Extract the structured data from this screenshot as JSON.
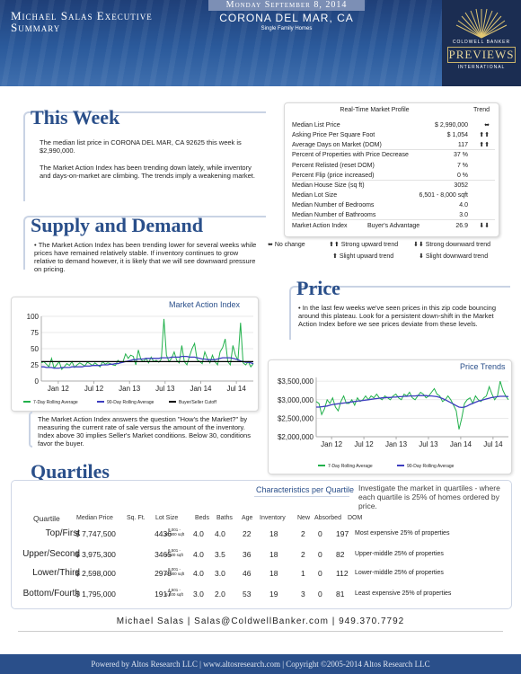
{
  "header": {
    "title_line1": "Michael Salas Executive",
    "title_line2": "Summary",
    "date": "Monday September 8, 2014",
    "city": "CORONA DEL MAR, CA",
    "property_type": "Single Family Homes",
    "logo_brand": "COLDWELL BANKER",
    "logo_name": "PREVIEWS",
    "logo_sub": "INTERNATIONAL"
  },
  "this_week": {
    "heading": "This Week",
    "para1": "The median list price in CORONA DEL MAR, CA 92625 this week is $2,990,000.",
    "para2": "The Market Action Index has been trending down lately, while inventory and days-on-market are climbing. The trends imply a weakening market."
  },
  "market_profile": {
    "title": "Real-Time Market Profile",
    "trend_header": "Trend",
    "rows": [
      {
        "label": "Median List Price",
        "value": "$ 2,990,000",
        "trend": "⬌"
      },
      {
        "label": "Asking Price Per Square Foot",
        "value": "$ 1,054",
        "trend": "⬆⬆"
      },
      {
        "label": "Average Days on Market (DOM)",
        "value": "117",
        "trend": "⬆⬆"
      },
      {
        "label": "Percent of Properties with Price Decrease",
        "value": "37 %",
        "trend": ""
      },
      {
        "label": "Percent Relisted (reset DOM)",
        "value": "7 %",
        "trend": ""
      },
      {
        "label": "Percent Flip (price increased)",
        "value": "0 %",
        "trend": ""
      },
      {
        "label": "Median House Size (sq ft)",
        "value": "3052",
        "trend": ""
      },
      {
        "label": "Median Lot Size",
        "value": "6,501 - 8,000 sqft",
        "trend": ""
      },
      {
        "label": "Median Number of Bedrooms",
        "value": "4.0",
        "trend": ""
      },
      {
        "label": "Median Number of Bathrooms",
        "value": "3.0",
        "trend": ""
      }
    ],
    "mai_label": "Market Action Index",
    "mai_status": "Buyer's Advantage",
    "mai_value": "26.9",
    "mai_trend": "⬇⬇"
  },
  "trend_legend": {
    "no_change": "No change",
    "strong_up": "Strong upward trend",
    "strong_down": "Strong downward trend",
    "slight_up": "Slight upward trend",
    "slight_down": "Slight downward trend",
    "no_change_icon": "⬌",
    "strong_up_icon": "⬆⬆",
    "strong_down_icon": "⬇⬇",
    "slight_up_icon": "⬆",
    "slight_down_icon": "⬇"
  },
  "supply_demand": {
    "heading": "Supply and Demand",
    "para": "The Market Action Index has been trending lower for several weeks while prices have remained relatively stable. If inventory continues to grow relative to demand however, it is likely that we will see downward pressure on pricing.",
    "chart_note": "The Market Action Index answers the question \"How's the Market?\" by measuring the current rate of sale versus the amount of the inventory.  Index above 30 implies Seller's Market conditions. Below 30, conditions favor the buyer."
  },
  "price": {
    "heading": "Price",
    "para": "In the last few weeks we've seen prices in this zip code bouncing around this plateau. Look for a persistent down-shift in the Market Action Index before we see prices deviate from these levels."
  },
  "quartiles": {
    "heading": "Quartiles",
    "characteristics_title": "Characteristics per Quartile",
    "intro": "Investigate the market in quartiles - where each quartile is 25% of homes ordered by price.",
    "columns": [
      "Quartile",
      "Median Price",
      "Sq. Ft.",
      "Lot Size",
      "Beds",
      "Baths",
      "Age",
      "Inventory",
      "New",
      "Absorbed",
      "DOM"
    ],
    "rows": [
      {
        "quartile": "Top/First",
        "price": "$ 7,747,500",
        "sqft": "4436",
        "lot1": "8,001 -",
        "lot2": "10,000 sqft",
        "beds": "4.0",
        "baths": "4.0",
        "age": "22",
        "inventory": "18",
        "new": "2",
        "absorbed": "0",
        "dom": "197",
        "desc": "Most expensive 25% of properties"
      },
      {
        "quartile": "Upper/Second",
        "price": "$ 3,975,300",
        "sqft": "3465",
        "lot1": "6,501 -",
        "lot2": "8,000 sqft",
        "beds": "4.0",
        "baths": "3.5",
        "age": "36",
        "inventory": "18",
        "new": "2",
        "absorbed": "0",
        "dom": "82",
        "desc": "Upper-middle 25% of properties"
      },
      {
        "quartile": "Lower/Third",
        "price": "$ 2,598,000",
        "sqft": "2978",
        "lot1": "8,001 -",
        "lot2": "10,000 sqft",
        "beds": "4.0",
        "baths": "3.0",
        "age": "46",
        "inventory": "18",
        "new": "1",
        "absorbed": "0",
        "dom": "112",
        "desc": "Lower-middle 25% of properties"
      },
      {
        "quartile": "Bottom/Fourth",
        "price": "$ 1,795,000",
        "sqft": "1917",
        "lot1": "4,501 -",
        "lot2": "6,500 sqft",
        "beds": "3.0",
        "baths": "2.0",
        "age": "53",
        "inventory": "19",
        "new": "3",
        "absorbed": "0",
        "dom": "81",
        "desc": "Least expensive 25% of properties"
      }
    ]
  },
  "footer": {
    "contact": "Michael Salas | Salas@ColdwellBanker.com | 949.370.7792",
    "copyright": "Powered by Altos Research LLC | www.altosresearch.com | Copyright ©2005-2014 Altos Research LLC"
  },
  "colors": {
    "header_blue": "#2b5a9b",
    "heading_blue": "#2a4f8a",
    "rolling7": "#22b14c",
    "rolling90": "#3d3dbf",
    "cutoff": "#000000"
  },
  "chart_data": [
    {
      "type": "line",
      "title": "Market Action Index",
      "x_ticks": [
        "Jan 12",
        "Jul 12",
        "Jan 13",
        "Jul 13",
        "Jan 14",
        "Jul 14"
      ],
      "y_ticks": [
        "0",
        "25",
        "50",
        "75",
        "100"
      ],
      "ylim": [
        0,
        100
      ],
      "series": [
        {
          "name": "7-Day Rolling Average",
          "values": [
            28,
            30,
            26,
            22,
            35,
            20,
            25,
            30,
            18,
            22,
            27,
            24,
            30,
            21,
            25,
            28,
            26,
            23,
            29,
            27,
            24,
            28,
            25,
            22,
            30,
            26,
            28,
            27,
            25,
            24,
            32,
            28,
            30,
            42,
            35,
            40,
            38,
            25,
            48,
            33,
            30,
            35,
            28,
            37,
            30,
            32,
            29,
            34,
            96,
            40,
            30,
            35,
            45,
            32,
            28,
            55,
            30,
            25,
            38,
            50,
            58,
            33,
            30,
            27,
            45,
            35,
            28,
            40,
            30,
            25,
            45,
            52,
            65,
            30,
            25,
            55,
            40,
            32,
            90,
            28,
            25,
            30,
            22,
            27
          ]
        },
        {
          "name": "90-Day Rolling Average",
          "values": [
            22,
            22,
            21,
            21,
            21,
            20,
            20,
            20,
            21,
            21,
            21,
            21,
            22,
            22,
            22,
            22,
            22,
            23,
            23,
            23,
            24,
            24,
            24,
            24,
            25,
            25,
            25,
            26,
            26,
            27,
            27,
            28,
            29,
            30,
            31,
            32,
            33,
            33,
            34,
            34,
            34,
            35,
            35,
            35,
            35,
            35,
            35,
            36,
            36,
            36,
            36,
            37,
            37,
            37,
            37,
            38,
            38,
            38,
            37,
            37,
            37,
            36,
            35,
            34,
            34,
            33,
            33,
            33,
            33,
            34,
            35,
            36,
            36,
            36,
            36,
            35,
            34,
            33,
            31,
            30,
            29,
            29,
            28,
            27
          ]
        },
        {
          "name": "Buyer/Seller Cutoff",
          "values": [
            30,
            30
          ]
        }
      ]
    },
    {
      "type": "line",
      "title": "Price Trends",
      "x_ticks": [
        "Jan 12",
        "Jul 12",
        "Jan 13",
        "Jul 13",
        "Jan 14",
        "Jul 14"
      ],
      "y_ticks": [
        "$2,000,000",
        "$2,500,000",
        "$3,000,000",
        "$3,500,000"
      ],
      "ylim": [
        2000000,
        3600000
      ],
      "series": [
        {
          "name": "7-Day Rolling Average",
          "values": [
            2950000,
            2900000,
            2600000,
            2750000,
            3000000,
            2900000,
            3050000,
            2800000,
            2700000,
            2950000,
            3100000,
            2900000,
            2900000,
            3000000,
            2850000,
            3050000,
            2950000,
            3000000,
            3100000,
            3000000,
            3100000,
            3050000,
            3150000,
            3050000,
            3000000,
            3100000,
            3050000,
            3000000,
            3100000,
            3150000,
            3050000,
            3000000,
            3150000,
            3100000,
            3200000,
            3050000,
            3000000,
            3100000,
            3200000,
            3150000,
            3050000,
            3100000,
            3200000,
            3300000,
            3150000,
            3100000,
            2950000,
            3000000,
            3100000,
            3000000,
            2850000,
            2700000,
            2200000,
            2500000,
            2900000,
            3000000,
            3050000,
            2900000,
            3100000,
            3000000,
            2950000,
            3050000,
            3100000,
            3350000,
            3150000,
            3000000,
            3100000,
            3500000,
            3250000,
            3100000,
            3000000
          ]
        },
        {
          "name": "90-Day Rolling Average",
          "values": [
            2800000,
            2800000,
            2810000,
            2820000,
            2830000,
            2850000,
            2870000,
            2880000,
            2890000,
            2900000,
            2910000,
            2920000,
            2930000,
            2940000,
            2950000,
            2960000,
            2970000,
            2980000,
            2990000,
            3000000,
            3010000,
            3020000,
            3030000,
            3040000,
            3050000,
            3050000,
            3060000,
            3060000,
            3070000,
            3070000,
            3080000,
            3080000,
            3090000,
            3090000,
            3100000,
            3100000,
            3100000,
            3110000,
            3110000,
            3110000,
            3110000,
            3100000,
            3100000,
            3090000,
            3080000,
            3060000,
            3030000,
            3000000,
            2960000,
            2920000,
            2880000,
            2840000,
            2800000,
            2790000,
            2800000,
            2830000,
            2870000,
            2900000,
            2930000,
            2960000,
            2980000,
            3000000,
            3020000,
            3040000,
            3060000,
            3070000,
            3080000,
            3090000,
            3090000,
            3090000,
            3080000
          ]
        }
      ]
    }
  ]
}
